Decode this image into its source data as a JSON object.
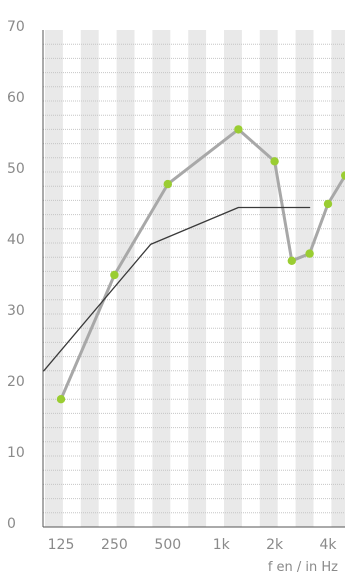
{
  "chart_data": {
    "type": "line",
    "title": "",
    "xlabel": "f en / in Hz",
    "ylabel": "",
    "x_tick_labels": [
      "125",
      "250",
      "500",
      "1k",
      "2k",
      "4k"
    ],
    "y_ticks": [
      0,
      10,
      20,
      30,
      40,
      50,
      60,
      70
    ],
    "ylim": [
      0,
      70
    ],
    "xlim": [
      100,
      5000
    ],
    "x_scale": "log",
    "grid": true,
    "legend": "none",
    "series": [
      {
        "color": "#a8a8a8",
        "marker_color": "#9acd32",
        "x": [
          125,
          250,
          500,
          1250,
          2000,
          2500,
          3150,
          4000,
          5000
        ],
        "y": [
          18,
          35.5,
          48.3,
          56,
          51.5,
          37.5,
          38.5,
          45.5,
          49.5
        ]
      },
      {
        "color": "#3a3a3a",
        "x": [
          100,
          400,
          1250,
          3150
        ],
        "y": [
          22,
          39.8,
          45,
          45
        ]
      }
    ]
  },
  "colors": {
    "background": "#ffffff",
    "grid_band": "#e9e9e9",
    "grid_line": "#c6c6c6",
    "axis": "#555555"
  }
}
